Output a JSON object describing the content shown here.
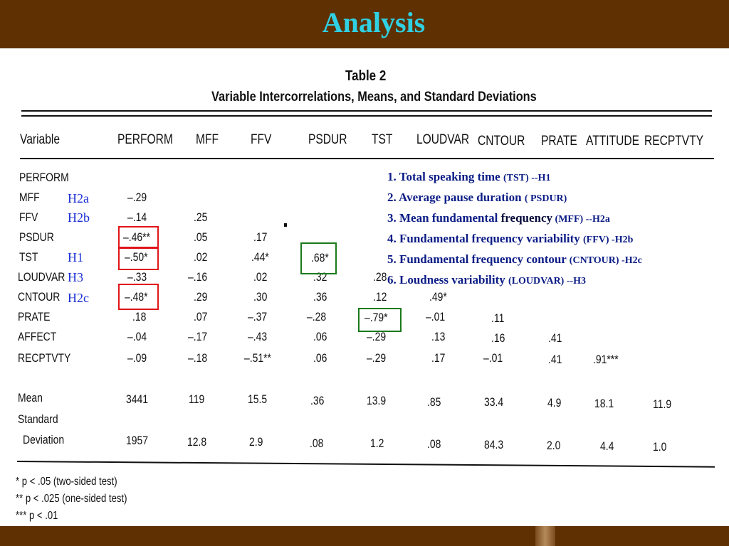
{
  "slide": {
    "title": "Analysis"
  },
  "table": {
    "caption": "Table 2",
    "subtitle": "Variable Intercorrelations, Means, and Standard Deviations",
    "columns": [
      "PERFORM",
      "MFF",
      "FFV",
      "PSDUR",
      "TST",
      "LOUDVAR",
      "CNTOUR",
      "PRATE",
      "ATTITUDE",
      "RECPTVTY"
    ],
    "header_label": "Variable",
    "rows": [
      {
        "label": "PERFORM",
        "values": []
      },
      {
        "label": "MFF",
        "values": [
          "–.29"
        ]
      },
      {
        "label": "FFV",
        "values": [
          "–.14",
          ".25"
        ]
      },
      {
        "label": "PSDUR",
        "values": [
          "–.46**",
          ".05",
          ".17"
        ]
      },
      {
        "label": "TST",
        "values": [
          "–.50*",
          ".02",
          ".44*",
          ".68*"
        ]
      },
      {
        "label": "LOUDVAR",
        "values": [
          "–.33",
          "–.16",
          ".02",
          ".32",
          ".28"
        ]
      },
      {
        "label": "CNTOUR",
        "values": [
          "–.48*",
          ".29",
          ".30",
          ".36",
          ".12",
          ".49*"
        ]
      },
      {
        "label": "PRATE",
        "values": [
          ".18",
          ".07",
          "–.37",
          "–.28",
          "–.79*",
          "–.01",
          ".11"
        ]
      },
      {
        "label": "AFFECT",
        "values": [
          "–.04",
          "–.17",
          "–.43",
          ".06",
          "–.29",
          ".13",
          ".16",
          ".41"
        ]
      },
      {
        "label": "RECPTVTY",
        "values": [
          "–.09",
          "–.18",
          "–.51**",
          ".06",
          "–.29",
          ".17",
          "–.01",
          ".41",
          ".91***"
        ]
      }
    ],
    "mean_label": "Mean",
    "means": [
      "3441",
      "119",
      "15.5",
      ".36",
      "13.9",
      ".85",
      "33.4",
      "4.9",
      "18.1",
      "11.9"
    ],
    "sd_label_1": "Standard",
    "sd_label_2": "Deviation",
    "sds": [
      "1957",
      "12.8",
      "2.9",
      ".08",
      "1.2",
      ".08",
      "84.3",
      "2.0",
      "4.4",
      "1.0"
    ],
    "footnotes": [
      "* p < .05 (two-sided test)",
      "** p < .025 (one-sided test)",
      "*** p < .01"
    ]
  },
  "hypotheses": [
    "H2a",
    "H2b",
    "H1",
    "H3",
    "H2c"
  ],
  "notes": [
    {
      "main": "1. Total speaking time ",
      "small": "(TST) --H1"
    },
    {
      "main": "2. Average pause duration ",
      "small": "( PSDUR)"
    },
    {
      "main": "3. Mean fundamental ",
      "dark": "frequency",
      "small": " (MFF) --H2a"
    },
    {
      "main": "4. Fundamental frequency variability ",
      "small": "(FFV) -H2b"
    },
    {
      "main": "5. Fundamental frequency contour ",
      "small": "(CNTOUR) -H2c"
    },
    {
      "main": "6. Loudness variability ",
      "small": "(LOUDVAR) --H3"
    }
  ],
  "colors": {
    "bar": "#5e3002",
    "title": "#2fd1e3",
    "highlight_red": "#e0141a",
    "highlight_green": "#1b7a1a",
    "hypothesis": "#1a2fd4",
    "notes": "#0b1c86"
  }
}
